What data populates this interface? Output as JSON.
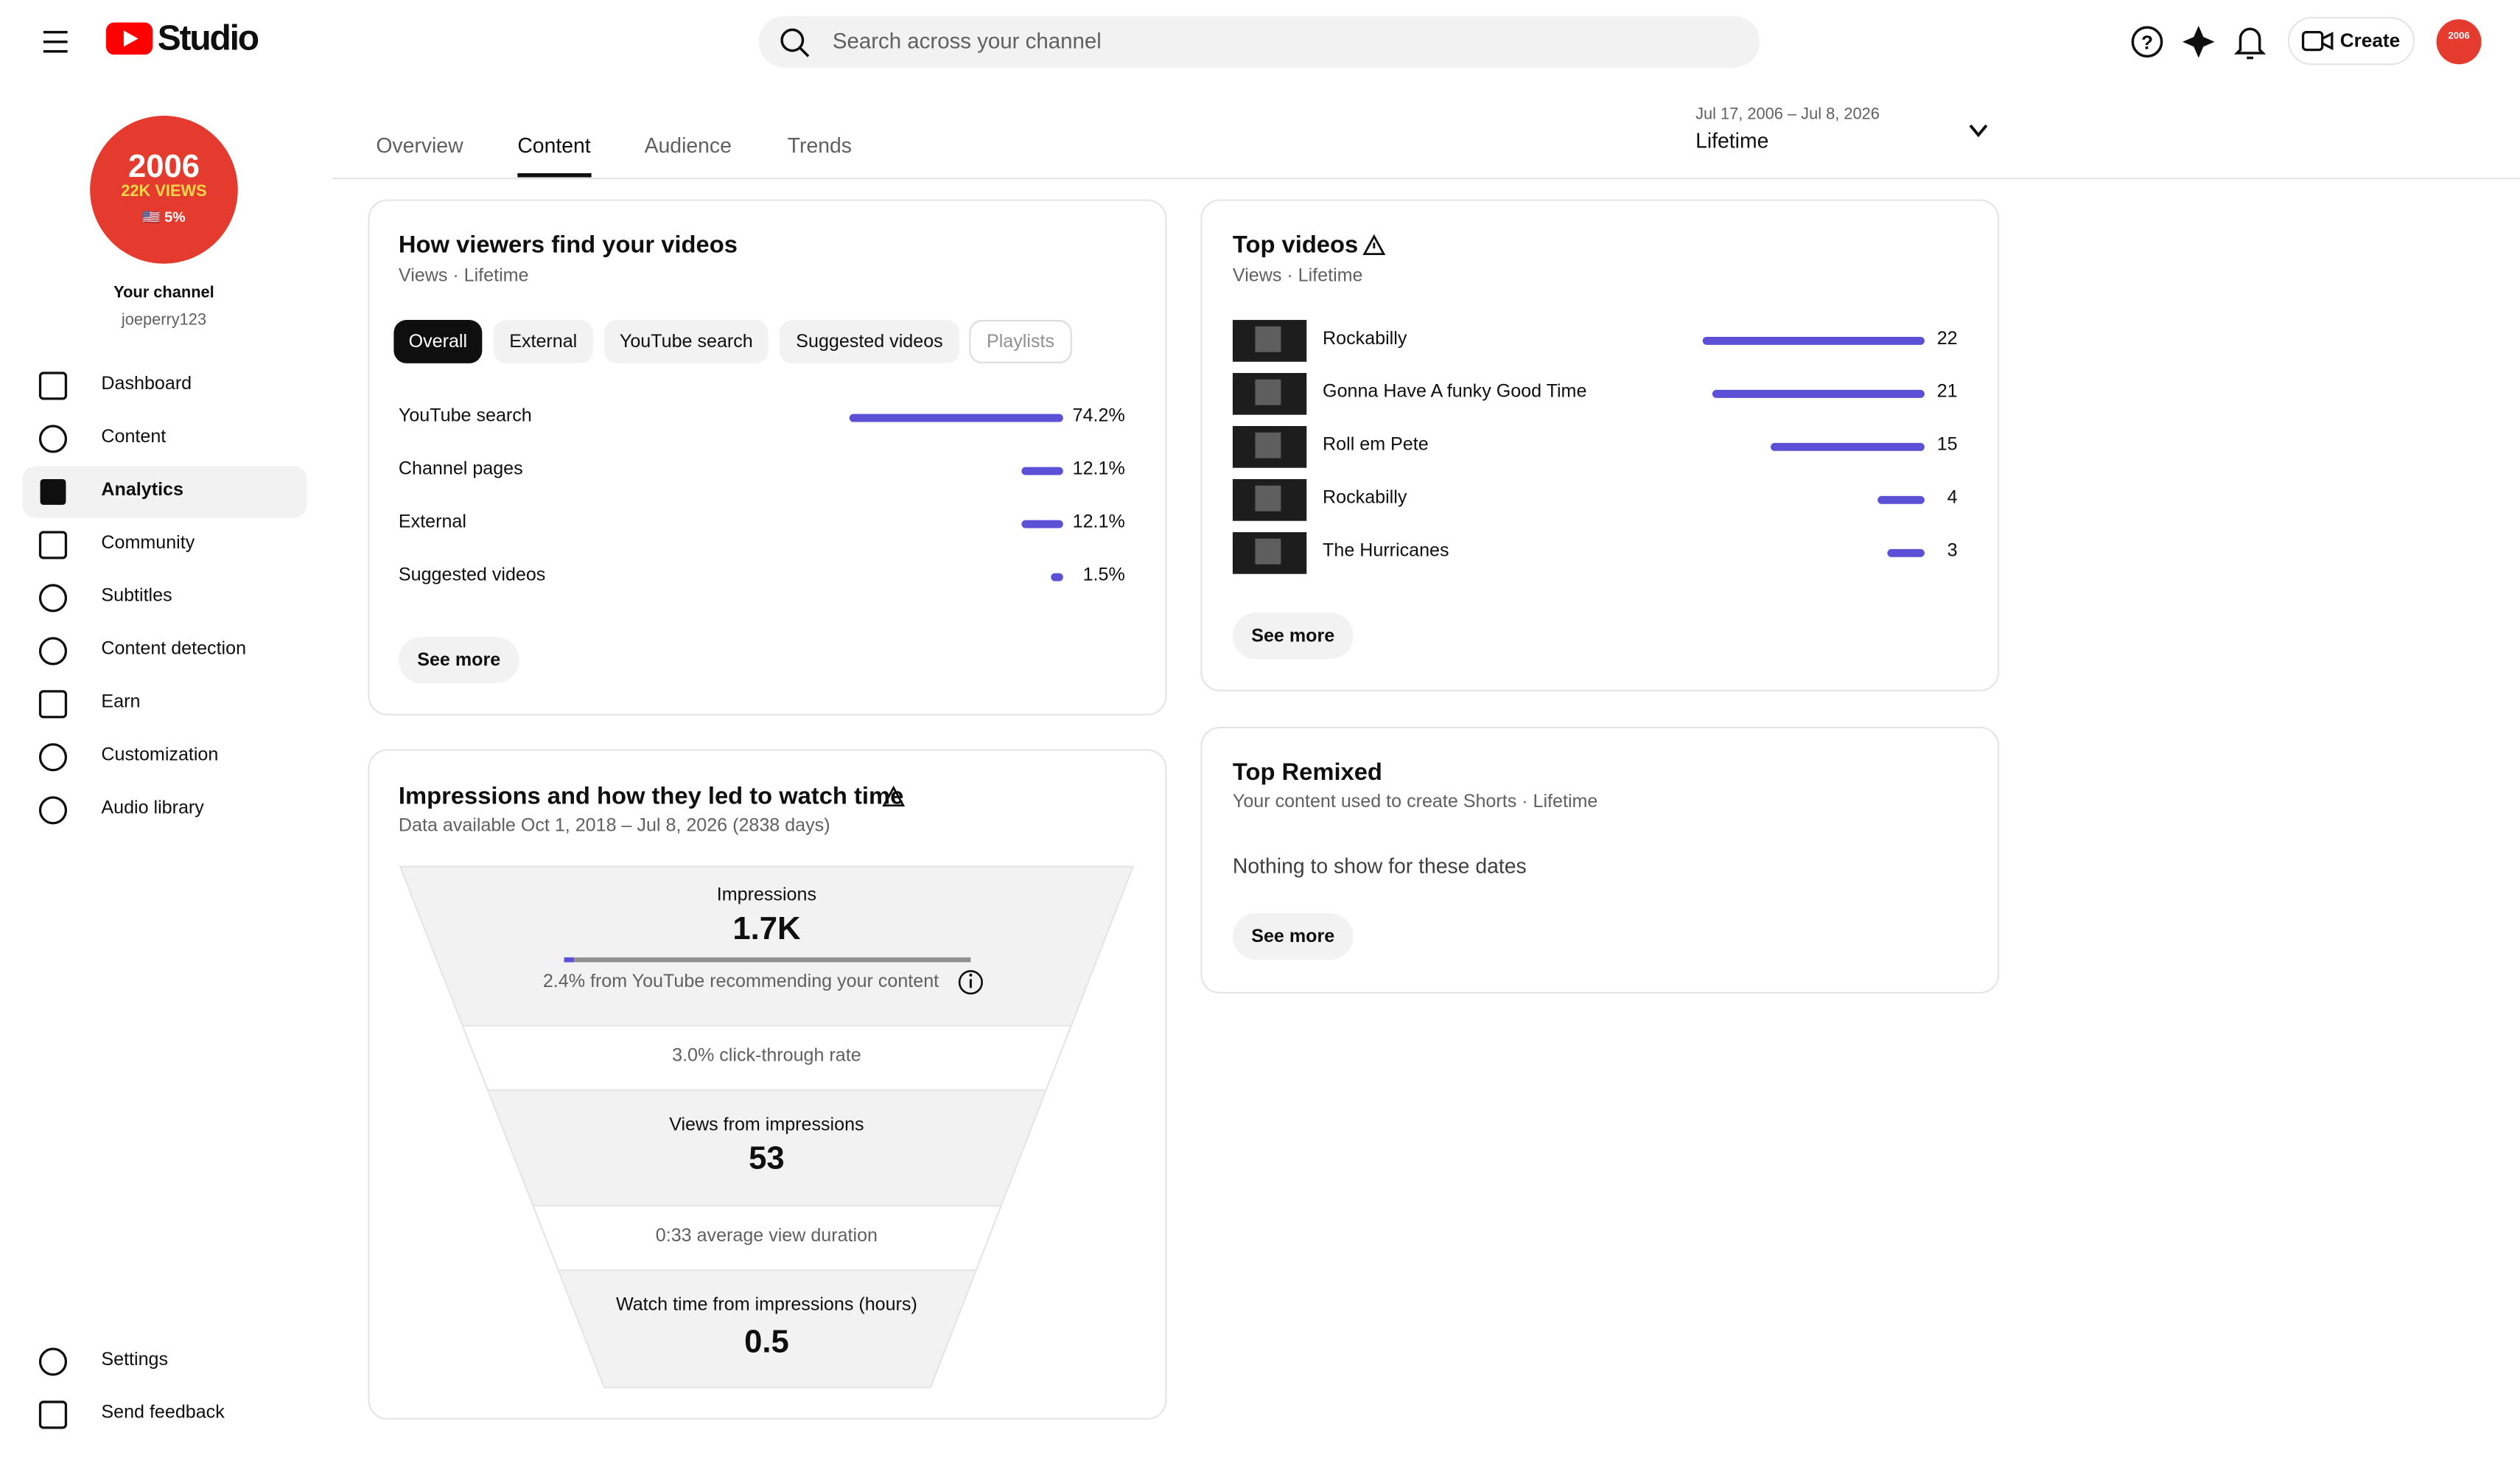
{
  "header": {
    "logo": "Studio",
    "search_placeholder": "Search across your channel",
    "create": "Create",
    "avatar_small": "2006"
  },
  "sidebar": {
    "avatar_lines": [
      "2006",
      "22K VIEWS",
      "🇺🇸 5%"
    ],
    "channel_title": "Your channel",
    "channel_handle": "joeperry123",
    "nav": [
      "Dashboard",
      "Content",
      "Analytics",
      "Community",
      "Subtitles",
      "Content detection",
      "Earn",
      "Customization",
      "Audio library"
    ],
    "bottom": [
      "Settings",
      "Send feedback"
    ]
  },
  "tabs": [
    "Overview",
    "Content",
    "Audience",
    "Trends"
  ],
  "date_range": {
    "dates": "Jul 17, 2006 – Jul 8, 2026",
    "label": "Lifetime"
  },
  "traffic": {
    "title": "How viewers find your videos",
    "subtitle": "Views · Lifetime",
    "chips": [
      "Overall",
      "External",
      "YouTube search",
      "Suggested videos",
      "Playlists"
    ],
    "rows": [
      {
        "label": "YouTube search",
        "value": 74.2,
        "value_label": "74.2%"
      },
      {
        "label": "Channel pages",
        "value": 12.1,
        "value_label": "12.1%"
      },
      {
        "label": "External",
        "value": 12.1,
        "value_label": "12.1%"
      },
      {
        "label": "Suggested videos",
        "value": 1.5,
        "value_label": "1.5%"
      }
    ],
    "see_more": "See more"
  },
  "impressions": {
    "title": "Impressions and how they led to watch time",
    "subtitle": "Data available Oct 1, 2018 – Jul 8, 2026 (2838 days)",
    "impressions_label": "Impressions",
    "impressions_value": "1.7K",
    "recommend_share": 2.4,
    "recommend_text": "2.4% from YouTube recommending your content",
    "ctr_text": "3.0% click-through rate",
    "views_label": "Views from impressions",
    "views_value": "53",
    "avd_text": "0:33 average view duration",
    "watch_label": "Watch time from impressions (hours)",
    "watch_value": "0.5"
  },
  "top_videos": {
    "title": "Top videos",
    "subtitle": "Views · Lifetime",
    "rows": [
      {
        "name": "Rockabilly",
        "value": 22
      },
      {
        "name": "Gonna Have A funky Good Time",
        "value": 21
      },
      {
        "name": "Roll em Pete",
        "value": 15
      },
      {
        "name": "Rockabilly",
        "value": 4
      },
      {
        "name": "The Hurricanes",
        "value": 3
      }
    ],
    "see_more": "See more"
  },
  "top_remixed": {
    "title": "Top Remixed",
    "subtitle": "Your content used to create Shorts · Lifetime",
    "empty": "Nothing to show for these dates",
    "see_more": "See more"
  }
}
